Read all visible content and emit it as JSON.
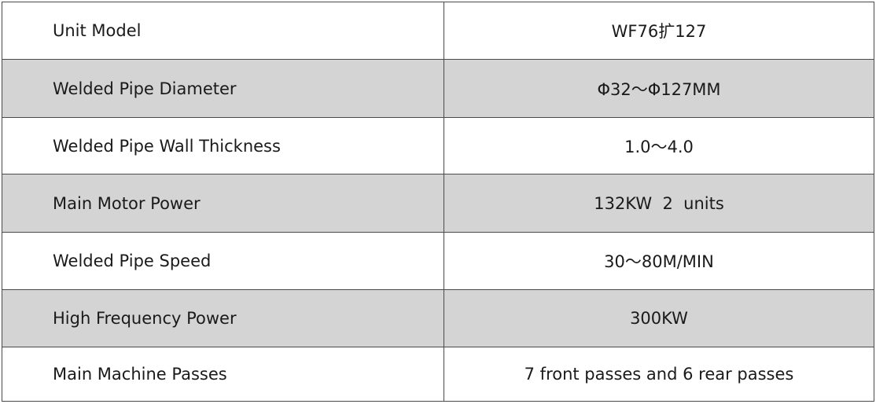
{
  "rows": [
    {
      "label": "Unit Model",
      "value": "WF76扩127"
    },
    {
      "label": "Welded Pipe Diameter",
      "value": "Φ32～Φ127MM"
    },
    {
      "label": "Welded Pipe Wall Thickness",
      "value": "1.0～4.0"
    },
    {
      "label": "Main Motor Power",
      "value": "132KW  2  units"
    },
    {
      "label": "Welded Pipe Speed",
      "value": "30～80M/MIN"
    },
    {
      "label": "High Frequency Power",
      "value": "300KW"
    },
    {
      "label": "Main Machine Passes",
      "value": "7 front passes and 6 rear passes"
    }
  ],
  "colors": {
    "shaded_row": "#d4d4d4",
    "border": "#4a4a4a"
  }
}
